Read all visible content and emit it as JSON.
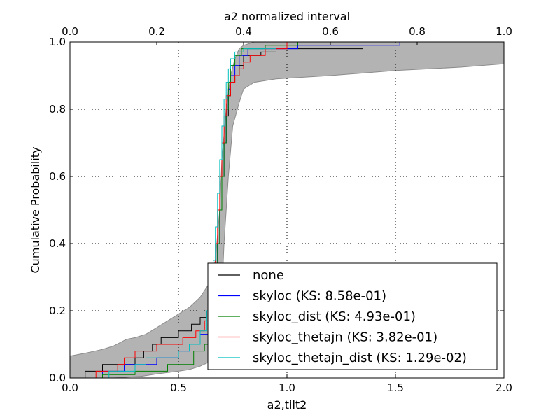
{
  "chart_data": {
    "type": "line",
    "subtype": "step-cdf",
    "xlabel": "a2,tilt2",
    "ylabel": "Cumulative Probability",
    "top_xlabel": "a2 normalized interval",
    "xlim": [
      0.0,
      2.0
    ],
    "ylim": [
      0.0,
      1.0
    ],
    "top_xlim": [
      0.0,
      1.0
    ],
    "xticks": [
      "0.0",
      "0.5",
      "1.0",
      "1.5",
      "2.0"
    ],
    "top_xticks": [
      "0.0",
      "0.2",
      "0.4",
      "0.6",
      "0.8",
      "1.0"
    ],
    "yticks": [
      "0.0",
      "0.2",
      "0.4",
      "0.6",
      "0.8",
      "1.0"
    ],
    "grid": true,
    "legend_position": "lower-right",
    "band": {
      "color": "#b3b3b3",
      "upper": [
        [
          0.0,
          0.065
        ],
        [
          0.08,
          0.075
        ],
        [
          0.15,
          0.085
        ],
        [
          0.2,
          0.095
        ],
        [
          0.26,
          0.115
        ],
        [
          0.3,
          0.12
        ],
        [
          0.35,
          0.13
        ],
        [
          0.4,
          0.15
        ],
        [
          0.45,
          0.17
        ],
        [
          0.5,
          0.19
        ],
        [
          0.55,
          0.21
        ],
        [
          0.6,
          0.24
        ],
        [
          0.64,
          0.28
        ],
        [
          0.67,
          0.35
        ],
        [
          0.69,
          0.5
        ],
        [
          0.7,
          0.65
        ],
        [
          0.72,
          0.8
        ],
        [
          0.74,
          0.9
        ],
        [
          0.76,
          0.95
        ],
        [
          0.78,
          0.98
        ],
        [
          0.8,
          0.99
        ],
        [
          0.85,
          1.0
        ],
        [
          2.0,
          1.0
        ]
      ],
      "lower": [
        [
          0.0,
          0.0
        ],
        [
          0.2,
          0.0
        ],
        [
          0.33,
          0.005
        ],
        [
          0.4,
          0.012
        ],
        [
          0.5,
          0.02
        ],
        [
          0.55,
          0.025
        ],
        [
          0.6,
          0.035
        ],
        [
          0.65,
          0.05
        ],
        [
          0.68,
          0.1
        ],
        [
          0.7,
          0.25
        ],
        [
          0.71,
          0.4
        ],
        [
          0.73,
          0.6
        ],
        [
          0.75,
          0.75
        ],
        [
          0.78,
          0.82
        ],
        [
          0.8,
          0.86
        ],
        [
          0.85,
          0.88
        ],
        [
          0.95,
          0.89
        ],
        [
          1.2,
          0.9
        ],
        [
          1.5,
          0.915
        ],
        [
          1.8,
          0.925
        ],
        [
          2.0,
          0.935
        ]
      ]
    },
    "series": [
      {
        "name": "none",
        "color": "#000000",
        "points": [
          [
            0.07,
            0.0
          ],
          [
            0.07,
            0.02
          ],
          [
            0.15,
            0.02
          ],
          [
            0.15,
            0.04
          ],
          [
            0.3,
            0.04
          ],
          [
            0.3,
            0.06
          ],
          [
            0.34,
            0.06
          ],
          [
            0.34,
            0.08
          ],
          [
            0.38,
            0.08
          ],
          [
            0.38,
            0.1
          ],
          [
            0.42,
            0.1
          ],
          [
            0.42,
            0.12
          ],
          [
            0.5,
            0.12
          ],
          [
            0.5,
            0.14
          ],
          [
            0.56,
            0.14
          ],
          [
            0.56,
            0.16
          ],
          [
            0.6,
            0.16
          ],
          [
            0.6,
            0.18
          ],
          [
            0.63,
            0.18
          ],
          [
            0.63,
            0.2
          ],
          [
            0.65,
            0.2
          ],
          [
            0.65,
            0.25
          ],
          [
            0.67,
            0.25
          ],
          [
            0.67,
            0.3
          ],
          [
            0.68,
            0.3
          ],
          [
            0.68,
            0.4
          ],
          [
            0.69,
            0.4
          ],
          [
            0.69,
            0.5
          ],
          [
            0.7,
            0.5
          ],
          [
            0.7,
            0.6
          ],
          [
            0.71,
            0.6
          ],
          [
            0.71,
            0.7
          ],
          [
            0.72,
            0.7
          ],
          [
            0.72,
            0.78
          ],
          [
            0.73,
            0.78
          ],
          [
            0.73,
            0.84
          ],
          [
            0.74,
            0.84
          ],
          [
            0.74,
            0.88
          ],
          [
            0.76,
            0.88
          ],
          [
            0.76,
            0.9
          ],
          [
            0.78,
            0.9
          ],
          [
            0.78,
            0.93
          ],
          [
            0.8,
            0.93
          ],
          [
            0.8,
            0.96
          ],
          [
            0.88,
            0.96
          ],
          [
            0.88,
            0.97
          ],
          [
            0.95,
            0.97
          ],
          [
            0.95,
            0.98
          ],
          [
            1.35,
            0.98
          ],
          [
            1.35,
            1.0
          ],
          [
            1.55,
            1.0
          ]
        ]
      },
      {
        "name": "skyloc (KS: 8.58e-01)",
        "color": "#0000ff",
        "points": [
          [
            0.15,
            0.0
          ],
          [
            0.15,
            0.02
          ],
          [
            0.25,
            0.02
          ],
          [
            0.25,
            0.04
          ],
          [
            0.4,
            0.04
          ],
          [
            0.4,
            0.06
          ],
          [
            0.5,
            0.06
          ],
          [
            0.5,
            0.08
          ],
          [
            0.55,
            0.08
          ],
          [
            0.55,
            0.1
          ],
          [
            0.6,
            0.1
          ],
          [
            0.6,
            0.13
          ],
          [
            0.64,
            0.13
          ],
          [
            0.64,
            0.18
          ],
          [
            0.66,
            0.18
          ],
          [
            0.66,
            0.25
          ],
          [
            0.67,
            0.25
          ],
          [
            0.67,
            0.3
          ],
          [
            0.68,
            0.3
          ],
          [
            0.68,
            0.4
          ],
          [
            0.69,
            0.4
          ],
          [
            0.69,
            0.5
          ],
          [
            0.7,
            0.5
          ],
          [
            0.7,
            0.6
          ],
          [
            0.71,
            0.6
          ],
          [
            0.71,
            0.7
          ],
          [
            0.72,
            0.7
          ],
          [
            0.72,
            0.8
          ],
          [
            0.73,
            0.8
          ],
          [
            0.73,
            0.86
          ],
          [
            0.74,
            0.86
          ],
          [
            0.74,
            0.9
          ],
          [
            0.76,
            0.9
          ],
          [
            0.76,
            0.93
          ],
          [
            0.78,
            0.93
          ],
          [
            0.78,
            0.96
          ],
          [
            0.82,
            0.96
          ],
          [
            0.82,
            0.98
          ],
          [
            1.05,
            0.98
          ],
          [
            1.05,
            0.99
          ],
          [
            1.52,
            0.99
          ],
          [
            1.52,
            1.0
          ],
          [
            1.55,
            1.0
          ]
        ]
      },
      {
        "name": "skyloc_dist (KS: 4.93e-01)",
        "color": "#008000",
        "points": [
          [
            0.15,
            0.0
          ],
          [
            0.15,
            0.01
          ],
          [
            0.3,
            0.01
          ],
          [
            0.3,
            0.02
          ],
          [
            0.45,
            0.02
          ],
          [
            0.45,
            0.04
          ],
          [
            0.57,
            0.04
          ],
          [
            0.57,
            0.08
          ],
          [
            0.62,
            0.08
          ],
          [
            0.62,
            0.1
          ],
          [
            0.64,
            0.1
          ],
          [
            0.64,
            0.13
          ],
          [
            0.65,
            0.13
          ],
          [
            0.65,
            0.18
          ],
          [
            0.66,
            0.18
          ],
          [
            0.66,
            0.25
          ],
          [
            0.67,
            0.25
          ],
          [
            0.67,
            0.3
          ],
          [
            0.68,
            0.3
          ],
          [
            0.68,
            0.4
          ],
          [
            0.69,
            0.4
          ],
          [
            0.69,
            0.5
          ],
          [
            0.7,
            0.5
          ],
          [
            0.7,
            0.6
          ],
          [
            0.71,
            0.6
          ],
          [
            0.71,
            0.7
          ],
          [
            0.72,
            0.7
          ],
          [
            0.72,
            0.8
          ],
          [
            0.73,
            0.8
          ],
          [
            0.73,
            0.88
          ],
          [
            0.74,
            0.88
          ],
          [
            0.74,
            0.93
          ],
          [
            0.76,
            0.93
          ],
          [
            0.76,
            0.96
          ],
          [
            0.79,
            0.96
          ],
          [
            0.79,
            0.98
          ],
          [
            0.9,
            0.98
          ],
          [
            0.9,
            0.99
          ],
          [
            1.05,
            0.99
          ],
          [
            1.05,
            1.0
          ],
          [
            1.55,
            1.0
          ]
        ]
      },
      {
        "name": "skyloc_thetajn (KS: 3.82e-01)",
        "color": "#ff0000",
        "points": [
          [
            0.12,
            0.0
          ],
          [
            0.12,
            0.02
          ],
          [
            0.22,
            0.02
          ],
          [
            0.22,
            0.04
          ],
          [
            0.25,
            0.04
          ],
          [
            0.25,
            0.06
          ],
          [
            0.3,
            0.06
          ],
          [
            0.3,
            0.08
          ],
          [
            0.4,
            0.08
          ],
          [
            0.4,
            0.1
          ],
          [
            0.52,
            0.1
          ],
          [
            0.52,
            0.12
          ],
          [
            0.58,
            0.12
          ],
          [
            0.58,
            0.14
          ],
          [
            0.62,
            0.14
          ],
          [
            0.62,
            0.17
          ],
          [
            0.64,
            0.17
          ],
          [
            0.64,
            0.2
          ],
          [
            0.65,
            0.2
          ],
          [
            0.65,
            0.25
          ],
          [
            0.66,
            0.25
          ],
          [
            0.66,
            0.3
          ],
          [
            0.67,
            0.3
          ],
          [
            0.67,
            0.4
          ],
          [
            0.68,
            0.4
          ],
          [
            0.68,
            0.5
          ],
          [
            0.69,
            0.5
          ],
          [
            0.69,
            0.6
          ],
          [
            0.7,
            0.6
          ],
          [
            0.7,
            0.7
          ],
          [
            0.71,
            0.7
          ],
          [
            0.71,
            0.78
          ],
          [
            0.72,
            0.78
          ],
          [
            0.72,
            0.84
          ],
          [
            0.74,
            0.84
          ],
          [
            0.74,
            0.88
          ],
          [
            0.76,
            0.88
          ],
          [
            0.76,
            0.9
          ],
          [
            0.78,
            0.9
          ],
          [
            0.78,
            0.92
          ],
          [
            0.8,
            0.92
          ],
          [
            0.8,
            0.94
          ],
          [
            0.83,
            0.94
          ],
          [
            0.83,
            0.96
          ],
          [
            0.9,
            0.96
          ],
          [
            0.9,
            0.98
          ],
          [
            1.0,
            0.98
          ],
          [
            1.0,
            1.0
          ],
          [
            1.55,
            1.0
          ]
        ]
      },
      {
        "name": "skyloc_thetajn_dist (KS: 1.29e-02)",
        "color": "#00bfbf",
        "points": [
          [
            0.18,
            0.0
          ],
          [
            0.18,
            0.02
          ],
          [
            0.3,
            0.02
          ],
          [
            0.3,
            0.04
          ],
          [
            0.35,
            0.04
          ],
          [
            0.35,
            0.06
          ],
          [
            0.5,
            0.06
          ],
          [
            0.5,
            0.08
          ],
          [
            0.55,
            0.08
          ],
          [
            0.55,
            0.1
          ],
          [
            0.6,
            0.1
          ],
          [
            0.6,
            0.14
          ],
          [
            0.63,
            0.14
          ],
          [
            0.63,
            0.2
          ],
          [
            0.65,
            0.2
          ],
          [
            0.65,
            0.25
          ],
          [
            0.66,
            0.25
          ],
          [
            0.66,
            0.35
          ],
          [
            0.67,
            0.35
          ],
          [
            0.67,
            0.45
          ],
          [
            0.68,
            0.45
          ],
          [
            0.68,
            0.55
          ],
          [
            0.69,
            0.55
          ],
          [
            0.69,
            0.65
          ],
          [
            0.7,
            0.65
          ],
          [
            0.7,
            0.75
          ],
          [
            0.71,
            0.75
          ],
          [
            0.71,
            0.83
          ],
          [
            0.72,
            0.83
          ],
          [
            0.72,
            0.88
          ],
          [
            0.73,
            0.88
          ],
          [
            0.73,
            0.92
          ],
          [
            0.74,
            0.92
          ],
          [
            0.74,
            0.95
          ],
          [
            0.76,
            0.95
          ],
          [
            0.76,
            0.97
          ],
          [
            0.8,
            0.97
          ],
          [
            0.8,
            0.98
          ],
          [
            0.95,
            0.98
          ],
          [
            0.95,
            1.0
          ],
          [
            1.55,
            1.0
          ]
        ]
      }
    ]
  }
}
